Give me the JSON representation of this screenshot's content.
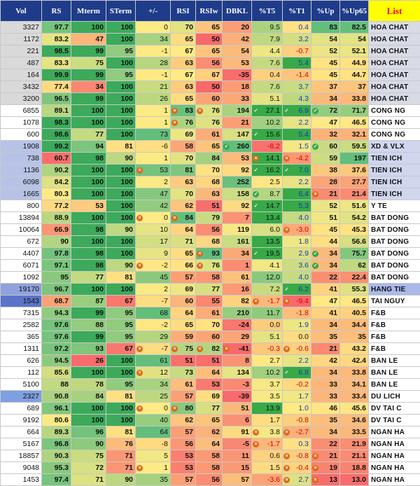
{
  "columns": [
    "Vol",
    "RS",
    "Mterm",
    "STerm",
    "+/-",
    "RSI",
    "RSIw",
    "DBKL",
    "%T5",
    "%T1",
    "%Up",
    "%Up65",
    "List"
  ],
  "colors": {
    "header_bg": "#1f3c8a",
    "list_header_bg": "#ffff00",
    "list_header_text": "#ff0000",
    "positive_text": "#1a36b8",
    "negative_text": "#d40000",
    "green": "#63be7b",
    "yellow": "#ffeb84",
    "red": "#f8696b"
  },
  "marker_icons": {
    "x": "orange-x-circle-icon",
    "check": "green-check-circle-icon"
  },
  "rows": [
    {
      "vol": "3327",
      "rs": "97.7",
      "mterm": "100",
      "sterm": "100",
      "pm": "0",
      "rsi": "70",
      "rsiw": "65",
      "dbkl": "20",
      "t5": "9.5",
      "t1": "0.4",
      "up": "83",
      "up65": "82.5",
      "list": "HOA CHAT"
    },
    {
      "vol": "1172",
      "rs": "83.2",
      "mterm": "47",
      "sterm": "100",
      "pm": "34",
      "rsi": "65",
      "rsiw": "50",
      "dbkl": "42",
      "t5": "7.9",
      "t1": "3.2",
      "up": "54",
      "up65": "54",
      "list": "HOA CHAT"
    },
    {
      "vol": "221",
      "rs": "98.5",
      "mterm": "99",
      "sterm": "95",
      "pm": "-1",
      "rsi": "67",
      "rsiw": "65",
      "dbkl": "54",
      "t5": "4.4",
      "t1": "-0.7",
      "up": "52",
      "up65": "52.1",
      "list": "HOA CHAT"
    },
    {
      "vol": "487",
      "rs": "83.3",
      "mterm": "75",
      "sterm": "100",
      "pm": "28",
      "rsi": "63",
      "rsiw": "56",
      "dbkl": "53",
      "t5": "7.6",
      "t1": "5.4",
      "up": "45",
      "up65": "44.9",
      "list": "HOA CHAT"
    },
    {
      "vol": "164",
      "rs": "99.9",
      "mterm": "99",
      "sterm": "95",
      "pm": "-1",
      "rsi": "67",
      "rsiw": "67",
      "dbkl": "-35",
      "t5": "0.4",
      "t1": "-1.4",
      "up": "45",
      "up65": "44.7",
      "list": "HOA CHAT"
    },
    {
      "vol": "3432",
      "rs": "77.4",
      "mterm": "34",
      "sterm": "100",
      "pm": "21",
      "rsi": "63",
      "rsiw": "50",
      "dbkl": "18",
      "t5": "7.6",
      "t1": "3.7",
      "up": "37",
      "up65": "37",
      "list": "HOA CHAT"
    },
    {
      "vol": "3200",
      "rs": "96.5",
      "mterm": "99",
      "sterm": "100",
      "pm": "26",
      "rsi": "65",
      "rsiw": "60",
      "dbkl": "33",
      "t5": "5.1",
      "t1": "4.3",
      "up": "34",
      "up65": "33.8",
      "list": "HOA CHAT"
    },
    {
      "vol": "6855",
      "rs": "89.1",
      "mterm": "100",
      "sterm": "100",
      "pm": "1",
      "rsi": "83",
      "rsiw": "76",
      "dbkl": "194",
      "t5": "27.1",
      "t1": "6.9",
      "up": "72",
      "up65": "71.7",
      "list": "CONG NG",
      "m_rsi": "x",
      "m_rsiw": "x",
      "m_t5": "check",
      "m_t1": "check",
      "m_up": "check"
    },
    {
      "vol": "1078",
      "rs": "98.3",
      "mterm": "100",
      "sterm": "100",
      "pm": "1",
      "rsi": "76",
      "rsiw": "76",
      "dbkl": "21",
      "t5": "10.2",
      "t1": "2.2",
      "up": "47",
      "up65": "46.5",
      "list": "CONG NG",
      "m_rsi": "x"
    },
    {
      "vol": "600",
      "rs": "98.6",
      "mterm": "77",
      "sterm": "100",
      "pm": "73",
      "rsi": "69",
      "rsiw": "61",
      "dbkl": "147",
      "t5": "15.6",
      "t1": "5.4",
      "up": "32",
      "up65": "32.1",
      "list": "CONG NG",
      "m_t5": "check"
    },
    {
      "vol": "1908",
      "rs": "99.2",
      "mterm": "94",
      "sterm": "81",
      "pm": "-6",
      "rsi": "58",
      "rsiw": "65",
      "dbkl": "260",
      "t5": "-8.2",
      "t1": "1.5",
      "up": "60",
      "up65": "59.5",
      "list": "XD & VLX",
      "m_dbkl": "check",
      "m_up": "check"
    },
    {
      "vol": "738",
      "rs": "60.7",
      "mterm": "98",
      "sterm": "90",
      "pm": "1",
      "rsi": "70",
      "rsiw": "84",
      "dbkl": "53",
      "t5": "14.1",
      "t1": "-4.2",
      "up": "59",
      "up65": "197",
      "list": "TIEN ICH",
      "m_t5": "x",
      "m_t1": "x"
    },
    {
      "vol": "1136",
      "rs": "90.2",
      "mterm": "100",
      "sterm": "100",
      "pm": "53",
      "rsi": "81",
      "rsiw": "70",
      "dbkl": "92",
      "t5": "16.2",
      "t1": "7.0",
      "up": "38",
      "up65": "37.6",
      "list": "TIEN ICH",
      "m_pm": "x",
      "m_t5": "check",
      "m_t1": "check"
    },
    {
      "vol": "6098",
      "rs": "84.2",
      "mterm": "100",
      "sterm": "100",
      "pm": "2",
      "rsi": "63",
      "rsiw": "68",
      "dbkl": "252",
      "t5": "2.5",
      "t1": "2.2",
      "up": "28",
      "up65": "27.7",
      "list": "TIEN ICH"
    },
    {
      "vol": "1665",
      "rs": "80.3",
      "mterm": "100",
      "sterm": "100",
      "pm": "47",
      "rsi": "70",
      "rsiw": "63",
      "dbkl": "158",
      "t5": "8.7",
      "t1": "6.4",
      "up": "21",
      "up65": "21.4",
      "list": "TIEN ICH",
      "m_t5": "check",
      "m_up": "x"
    },
    {
      "vol": "800",
      "rs": "77.2",
      "mterm": "53",
      "sterm": "100",
      "pm": "42",
      "rsi": "62",
      "rsiw": "51",
      "dbkl": "92",
      "t5": "14.7",
      "t1": "5.3",
      "up": "52",
      "up65": "51.6",
      "list": "Y TE",
      "m_t5": "check"
    },
    {
      "vol": "13894",
      "rs": "88.9",
      "mterm": "100",
      "sterm": "100",
      "pm": "0",
      "rsi": "84",
      "rsiw": "79",
      "dbkl": "7",
      "t5": "13.4",
      "t1": "4.0",
      "up": "51",
      "up65": "54.2",
      "list": "BAT DONG",
      "m_pm": "x",
      "m_rsi": "x"
    },
    {
      "vol": "10064",
      "rs": "66.9",
      "mterm": "98",
      "sterm": "90",
      "pm": "10",
      "rsi": "64",
      "rsiw": "56",
      "dbkl": "119",
      "t5": "6.0",
      "t1": "-3.0",
      "up": "45",
      "up65": "45.3",
      "list": "BAT DONG",
      "m_t1": "x"
    },
    {
      "vol": "672",
      "rs": "90",
      "mterm": "100",
      "sterm": "100",
      "pm": "17",
      "rsi": "71",
      "rsiw": "68",
      "dbkl": "161",
      "t5": "13.5",
      "t1": "1.8",
      "up": "44",
      "up65": "56.6",
      "list": "BAT DONG"
    },
    {
      "vol": "4407",
      "rs": "97.8",
      "mterm": "98",
      "sterm": "100",
      "pm": "9",
      "rsi": "65",
      "rsiw": "93",
      "dbkl": "34",
      "t5": "19.5",
      "t1": "2.9",
      "up": "34",
      "up65": "75.7",
      "list": "BAT DONG",
      "m_rsiw": "x",
      "m_t5": "check",
      "m_up": "check"
    },
    {
      "vol": "6071",
      "rs": "97.1",
      "mterm": "98",
      "sterm": "90",
      "pm": "-2",
      "rsi": "66",
      "rsiw": "76",
      "dbkl": "1",
      "t5": "4.1",
      "t1": "3.6",
      "up": "34",
      "up65": "62",
      "list": "BAT DONG",
      "m_pm": "x",
      "m_rsiw": "x",
      "m_up": "check"
    },
    {
      "vol": "1092",
      "rs": "95",
      "mterm": "77",
      "sterm": "81",
      "pm": "45",
      "rsi": "57",
      "rsiw": "58",
      "dbkl": "61",
      "t5": "12.0",
      "t1": "4.0",
      "up": "22",
      "up65": "22.4",
      "list": "BAT DONG"
    },
    {
      "vol": "19170",
      "rs": "96.7",
      "mterm": "100",
      "sterm": "100",
      "pm": "2",
      "rsi": "69",
      "rsiw": "77",
      "dbkl": "16",
      "t5": "7.2",
      "t1": "6.2",
      "up": "41",
      "up65": "55.3",
      "list": "HANG TIE",
      "m_t1": "check"
    },
    {
      "vol": "1543",
      "rs": "68.7",
      "mterm": "87",
      "sterm": "67",
      "pm": "-7",
      "rsi": "60",
      "rsiw": "55",
      "dbkl": "82",
      "t5": "-1.7",
      "t1": "-9.4",
      "up": "47",
      "up65": "46.5",
      "list": "TAI NGUY",
      "m_t5": "x",
      "m_t1": "x"
    },
    {
      "vol": "7315",
      "rs": "94.3",
      "mterm": "99",
      "sterm": "95",
      "pm": "68",
      "rsi": "64",
      "rsiw": "61",
      "dbkl": "210",
      "t5": "11.7",
      "t1": "-1.8",
      "up": "41",
      "up65": "40.5",
      "list": "F&B"
    },
    {
      "vol": "2582",
      "rs": "97.6",
      "mterm": "88",
      "sterm": "95",
      "pm": "-2",
      "rsi": "65",
      "rsiw": "70",
      "dbkl": "-24",
      "t5": "0.0",
      "t1": "1.9",
      "up": "34",
      "up65": "34.4",
      "list": "F&B"
    },
    {
      "vol": "365",
      "rs": "97.6",
      "mterm": "99",
      "sterm": "95",
      "pm": "29",
      "rsi": "59",
      "rsiw": "60",
      "dbkl": "29",
      "t5": "5.1",
      "t1": "0.0",
      "up": "35",
      "up65": "35",
      "list": "F&B"
    },
    {
      "vol": "1311",
      "rs": "97.2",
      "mterm": "93",
      "sterm": "67",
      "pm": "-7",
      "rsi": "75",
      "rsiw": "82",
      "dbkl": "-41",
      "t5": "-0.3",
      "t1": "-0.6",
      "up": "21",
      "up65": "43.2",
      "list": "F&B",
      "m_pm": "x",
      "m_rsi": "x",
      "m_rsiw": "x",
      "m_dbkl": "x",
      "m_t1": "x"
    },
    {
      "vol": "626",
      "rs": "94.5",
      "mterm": "26",
      "sterm": "100",
      "pm": "61",
      "rsi": "51",
      "rsiw": "51",
      "dbkl": "8",
      "t5": "2.7",
      "t1": "2.2",
      "up": "42",
      "up65": "42.4",
      "list": "BAN LE"
    },
    {
      "vol": "112",
      "rs": "85.6",
      "mterm": "100",
      "sterm": "100",
      "pm": "12",
      "rsi": "73",
      "rsiw": "64",
      "dbkl": "134",
      "t5": "10.2",
      "t1": "6.8",
      "up": "34",
      "up65": "33.8",
      "list": "BAN LE",
      "m_pm": "x",
      "m_t1": "check"
    },
    {
      "vol": "5100",
      "rs": "88",
      "mterm": "78",
      "sterm": "95",
      "pm": "34",
      "rsi": "61",
      "rsiw": "53",
      "dbkl": "-3",
      "t5": "3.7",
      "t1": "-0.2",
      "up": "33",
      "up65": "34.1",
      "list": "BAN LE"
    },
    {
      "vol": "2327",
      "rs": "90.8",
      "mterm": "84",
      "sterm": "81",
      "pm": "25",
      "rsi": "57",
      "rsiw": "69",
      "dbkl": "-39",
      "t5": "3.5",
      "t1": "1.7",
      "up": "33",
      "up65": "33.4",
      "list": "DU LICH"
    },
    {
      "vol": "689",
      "rs": "96.1",
      "mterm": "100",
      "sterm": "100",
      "pm": "0",
      "rsi": "80",
      "rsiw": "77",
      "dbkl": "51",
      "t5": "13.9",
      "t1": "1.0",
      "up": "46",
      "up65": "45.6",
      "list": "DV TAI C",
      "m_pm": "x",
      "m_rsi": "x"
    },
    {
      "vol": "9192",
      "rs": "80.6",
      "mterm": "100",
      "sterm": "100",
      "pm": "40",
      "rsi": "62",
      "rsiw": "65",
      "dbkl": "6",
      "t5": "1.7",
      "t1": "-0.8",
      "up": "35",
      "up65": "34.6",
      "list": "DV TAI C"
    },
    {
      "vol": "664",
      "rs": "89.3",
      "mterm": "96",
      "sterm": "81",
      "pm": "64",
      "rsi": "57",
      "rsiw": "62",
      "dbkl": "91",
      "t5": "3.8",
      "t1": "-2.7",
      "up": "34",
      "up65": "33.5",
      "list": "NGAN HA",
      "m_t5": "x",
      "m_t1": "x"
    },
    {
      "vol": "5167",
      "rs": "96.8",
      "mterm": "90",
      "sterm": "76",
      "pm": "-8",
      "rsi": "56",
      "rsiw": "64",
      "dbkl": "-5",
      "t5": "-1.7",
      "t1": "0.3",
      "up": "22",
      "up65": "21.9",
      "list": "NGAN HA",
      "m_t5": "x"
    },
    {
      "vol": "18857",
      "rs": "90.3",
      "mterm": "75",
      "sterm": "71",
      "pm": "5",
      "rsi": "53",
      "rsiw": "58",
      "dbkl": "11",
      "t5": "0.6",
      "t1": "-0.8",
      "up": "21",
      "up65": "21.1",
      "list": "NGAN HA",
      "m_t1": "x",
      "m_up": "x"
    },
    {
      "vol": "9048",
      "rs": "95.3",
      "mterm": "72",
      "sterm": "71",
      "pm": "1",
      "rsi": "53",
      "rsiw": "58",
      "dbkl": "15",
      "t5": "1.5",
      "t1": "-0.4",
      "up": "19",
      "up65": "18.8",
      "list": "NGAN HA",
      "m_pm": "x",
      "m_t1": "x",
      "m_up": "x"
    },
    {
      "vol": "1453",
      "rs": "97.4",
      "mterm": "71",
      "sterm": "90",
      "pm": "35",
      "rsi": "57",
      "rsiw": "56",
      "dbkl": "57",
      "t5": "-3.6",
      "t1": "2.7",
      "up": "13",
      "up65": "13.0",
      "list": "NGAN HA",
      "m_t1": "x",
      "m_up": "x"
    }
  ]
}
